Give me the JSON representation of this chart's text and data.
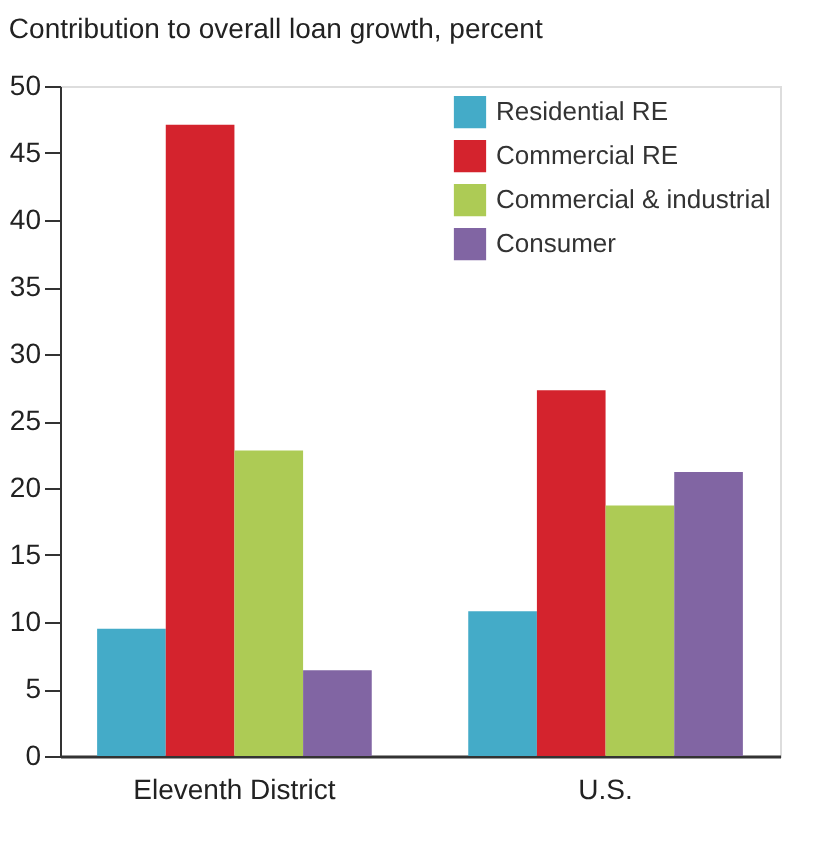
{
  "chart_data": {
    "type": "bar",
    "title": "Contribution to overall loan growth, percent",
    "categories": [
      "Eleventh District",
      "U.S."
    ],
    "series": [
      {
        "name": "Residential RE",
        "color": "#44abc8",
        "values": [
          9.5,
          10.8
        ]
      },
      {
        "name": "Commercial RE",
        "color": "#d4232d",
        "values": [
          47.1,
          27.3
        ]
      },
      {
        "name": "Commercial & industrial",
        "color": "#adcb55",
        "values": [
          22.8,
          18.7
        ]
      },
      {
        "name": "Consumer",
        "color": "#8165a3",
        "values": [
          6.4,
          21.2
        ]
      }
    ],
    "ylim": [
      0,
      50
    ],
    "yticks": [
      0,
      5,
      10,
      15,
      20,
      25,
      30,
      35,
      40,
      45,
      50
    ],
    "grid": false,
    "legend": "top right"
  }
}
